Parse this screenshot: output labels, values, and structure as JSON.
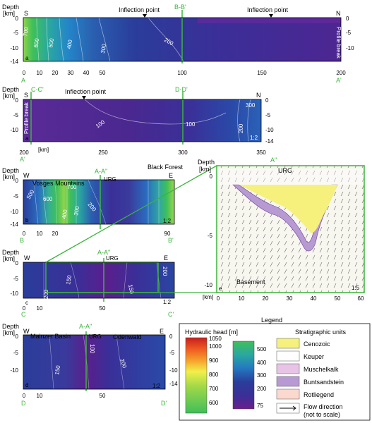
{
  "colors": {
    "section_line": "#3cb43c",
    "deep_purple": "#5a1f8c",
    "mid_blue": "#2a3d9a",
    "green": "#3fbf5a",
    "yellow": "#f2ef6a",
    "cenozoic": "#f6f17d",
    "keuper": "#ffffff",
    "muschelkalk": "#e7c4e6",
    "buntsandstein": "#b89ad3",
    "rotliegend": "#fbd9cf"
  },
  "panel_a_top": {
    "depth_label": "Depth",
    "unit_label": "[km]",
    "start_dir": "S",
    "end_dir": "N",
    "section_label": "B-B'",
    "inflection_1": "Inflection point",
    "inflection_2": "Inflection point",
    "profile_break": "Profile break",
    "panel_letter": "a",
    "start_letter": "A",
    "end_letter": "A'",
    "y_ticks": [
      "0",
      "-5",
      "-10",
      "-14"
    ],
    "y_ticks_right": [
      "0",
      "-5",
      "-10"
    ],
    "x_ticks": [
      "0",
      "10",
      "20",
      "30",
      "40",
      "50",
      "100",
      "150",
      "200"
    ],
    "contours": [
      "700",
      "600",
      "500",
      "400",
      "300",
      "200"
    ]
  },
  "panel_a_bottom": {
    "depth_label": "Depth",
    "unit_label": "[km]",
    "start_dir": "S",
    "end_dir": "N",
    "section_cc": "C-C'",
    "section_dd": "D-D'",
    "inflection": "Inflection point",
    "profile_break": "Profile break",
    "panel_letter": "a",
    "start_letter": "A'",
    "scale": "1:2",
    "y_ticks": [
      "0",
      "-5",
      "-10",
      "-14"
    ],
    "x_ticks": [
      "200",
      "250",
      "300",
      "350"
    ],
    "contours": [
      "100",
      "100",
      "200",
      "300"
    ]
  },
  "panel_b": {
    "depth_label": "Depth",
    "unit_label": "[km]",
    "start_dir": "W",
    "end_dir": "E",
    "mountains": "Vosges Mountains",
    "section": "A-A''",
    "urg": "URG",
    "forest": "Black Forest",
    "panel_letter": "b",
    "start_letter": "B",
    "end_letter": "B'",
    "scale": "1:2",
    "y_ticks": [
      "0",
      "-5",
      "-10",
      "-14"
    ],
    "x_ticks": [
      "0",
      "10",
      "20",
      "90"
    ],
    "contours": [
      "700",
      "600",
      "500",
      "400",
      "300",
      "200"
    ]
  },
  "panel_c": {
    "depth_label": "Depth",
    "unit_label": "[km]",
    "start_dir": "W",
    "end_dir": "E",
    "section": "A-A''",
    "urg": "URG",
    "panel_letter": "c",
    "start_letter": "C",
    "end_letter": "C'",
    "scale": "1:2",
    "y_ticks": [
      "0",
      "-5",
      "-10"
    ],
    "x_ticks": [
      "0",
      "10",
      "50"
    ],
    "contours": [
      "200",
      "150",
      "150",
      "200"
    ]
  },
  "panel_d": {
    "depth_label": "Depth",
    "unit_label": "[km]",
    "start_dir": "W",
    "end_dir": "E",
    "basin": "Mainzer Basin",
    "section": "A-A''",
    "urg": "URG",
    "odenwald": "Odenwald",
    "panel_letter": "d",
    "start_letter": "D",
    "end_letter": "D'",
    "scale": "1:2",
    "y_ticks": [
      "0",
      "-5",
      "-10",
      "-14"
    ],
    "y_ticks_left": [
      "0",
      "-5",
      "-10"
    ],
    "x_ticks": [
      "0",
      "10",
      "50"
    ],
    "contours": [
      "150",
      "100",
      "200"
    ]
  },
  "panel_e": {
    "depth_label": "Depth",
    "unit_label": "[km]",
    "section_end": "A''",
    "urg": "URG",
    "basement": "Basement",
    "panel_letter": "e",
    "scale": "1:5",
    "y_ticks": [
      "0",
      "-5",
      "-10"
    ],
    "x_ticks": [
      "0",
      "10",
      "20",
      "30",
      "40",
      "50",
      "60"
    ]
  },
  "legend": {
    "title": "Legend",
    "head_title": "Hydraulic head [m]",
    "scale_left": [
      "1050",
      "1000",
      "900",
      "800",
      "700",
      "600"
    ],
    "scale_right": [
      "500",
      "400",
      "300",
      "200",
      "75"
    ],
    "strat_title": "Stratigraphic units",
    "units": [
      {
        "name": "Cenozoic",
        "color": "#f6f17d"
      },
      {
        "name": "Keuper",
        "color": "#ffffff"
      },
      {
        "name": "Muschelkalk",
        "color": "#e7c4e6"
      },
      {
        "name": "Buntsandstein",
        "color": "#b89ad3"
      },
      {
        "name": "Rotliegend",
        "color": "#fbd9cf"
      }
    ],
    "flow_1": "Flow direction",
    "flow_2": "(not to scale)"
  }
}
